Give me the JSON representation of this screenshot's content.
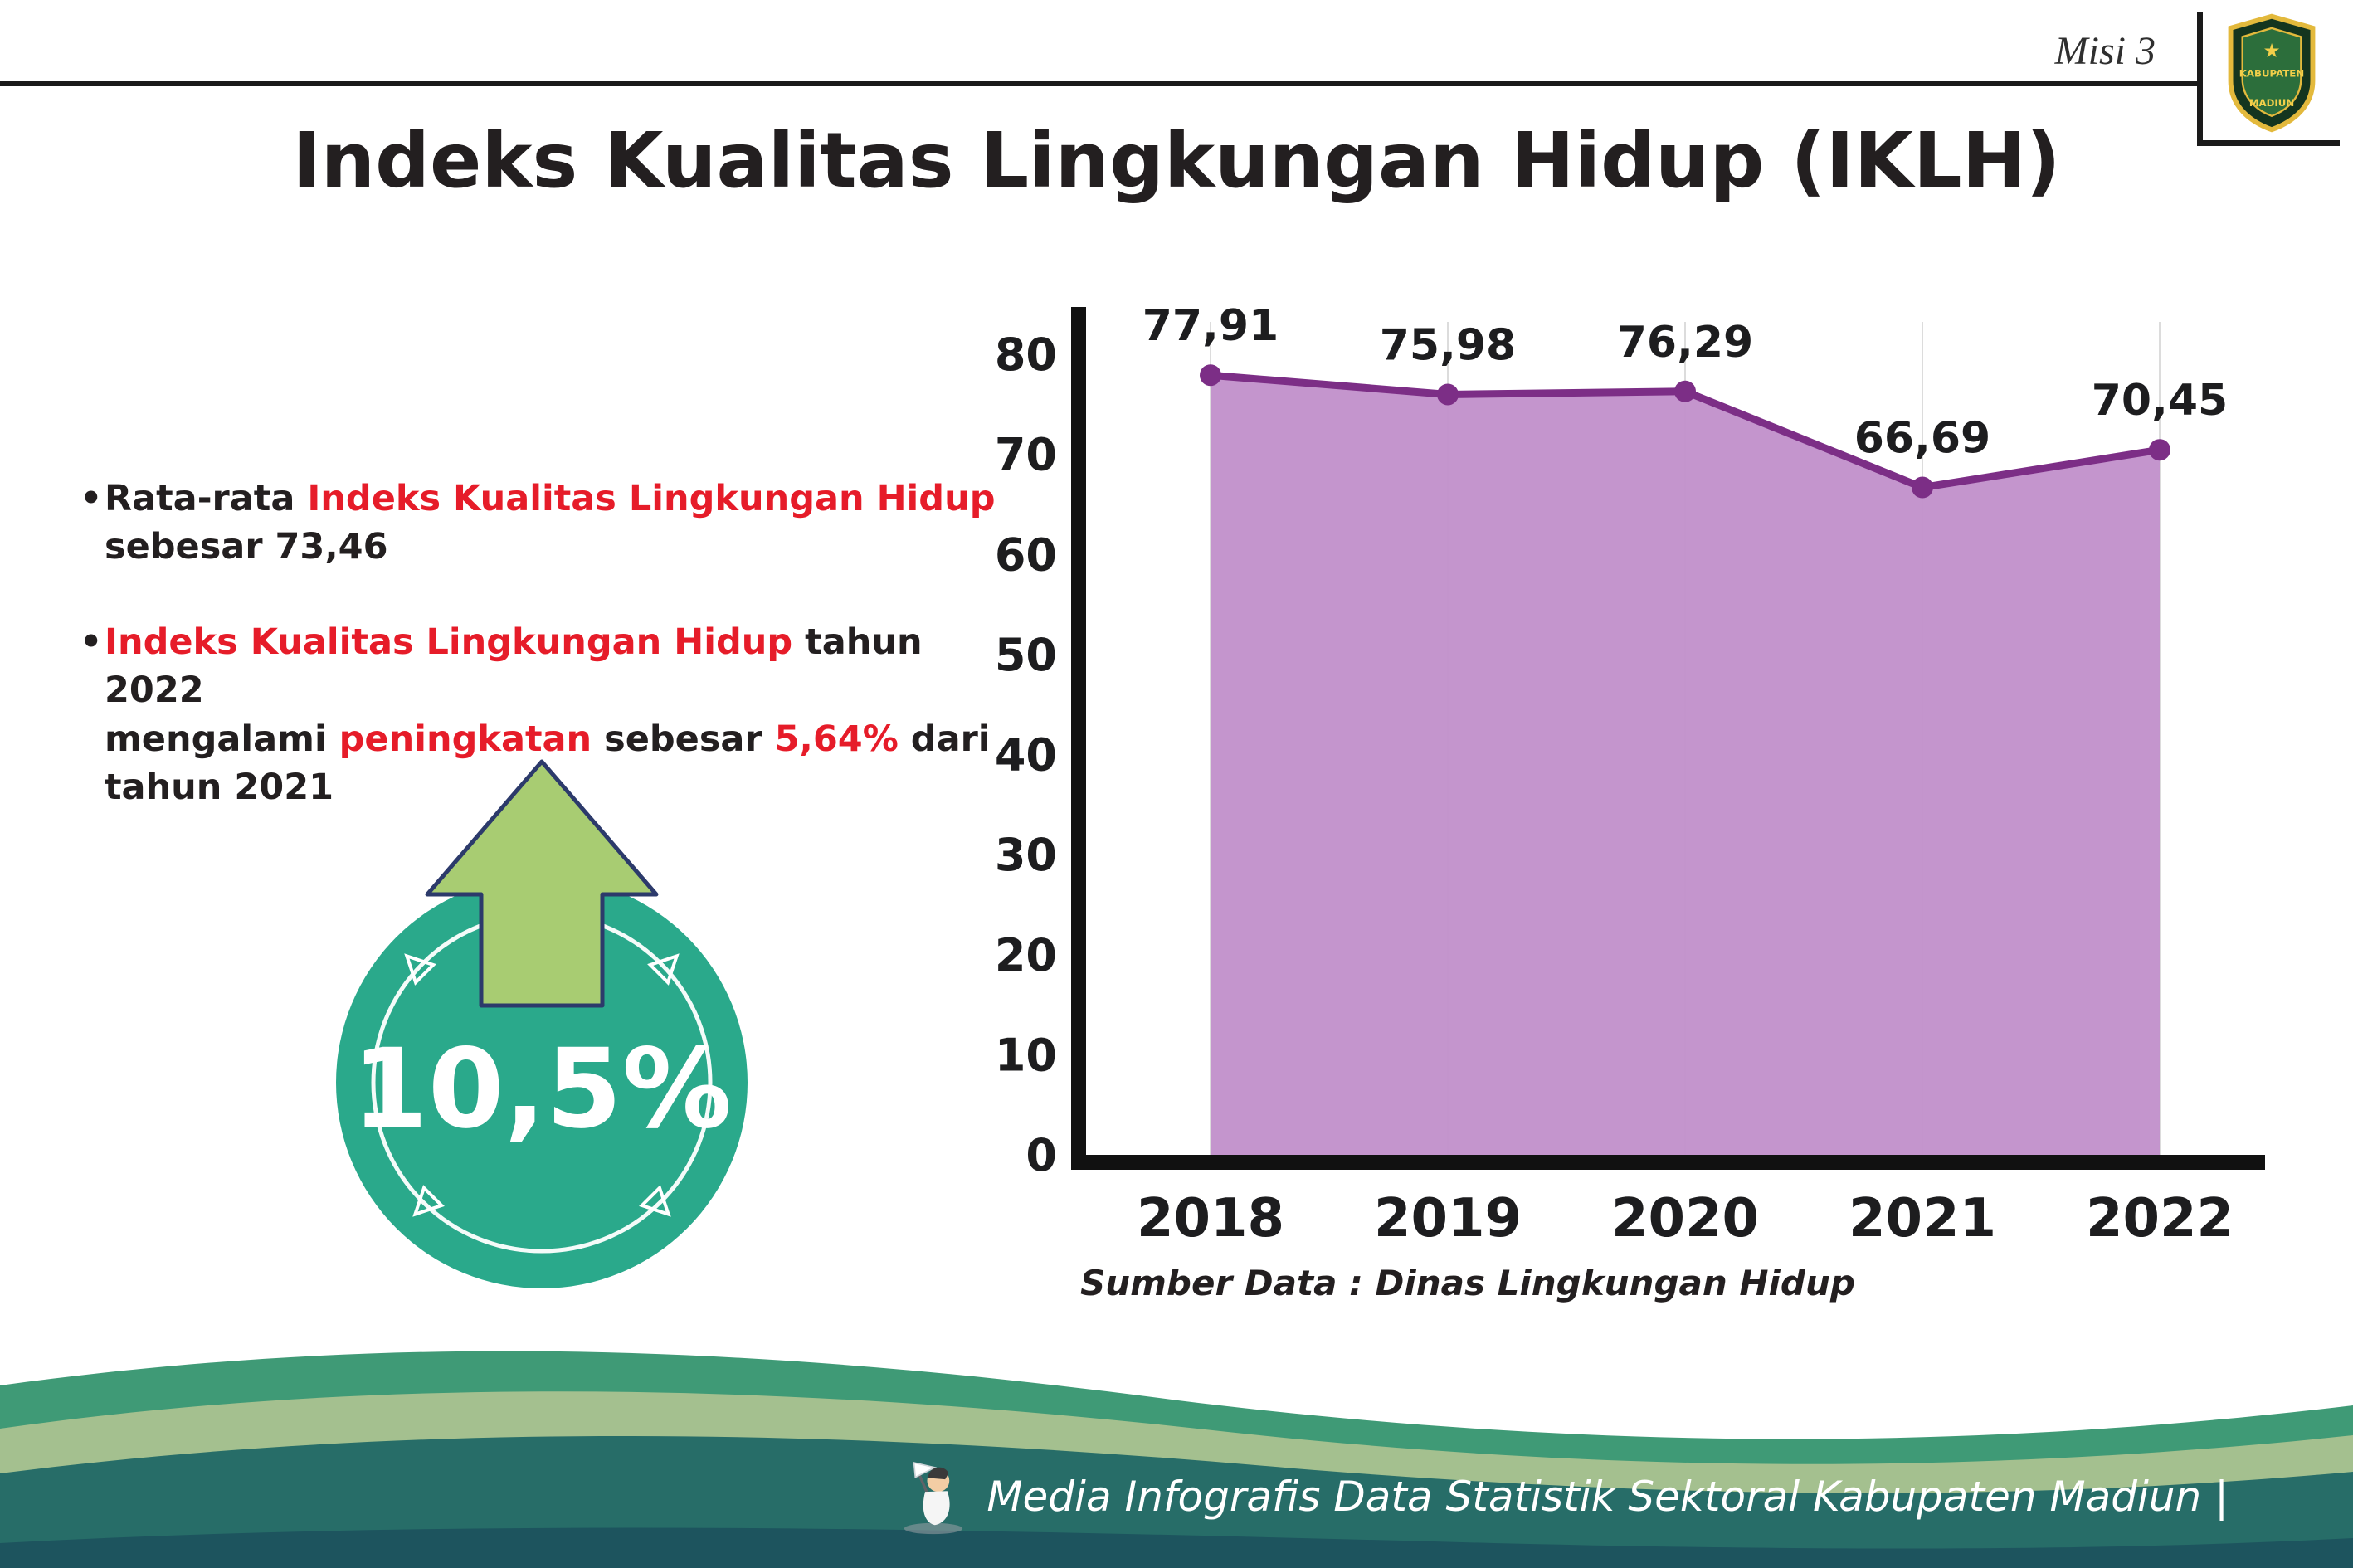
{
  "header": {
    "misi_label": "Misi 3",
    "title": "Indeks Kualitas Lingkungan Hidup (IKLH)",
    "logo_text_top": "KABUPATEN",
    "logo_text_bottom": "MADIUN"
  },
  "palette": {
    "accent_red": "#e61c29",
    "text_dark": "#231f20",
    "badge_teal": "#2aa98b",
    "arrow_green": "#a8cc72"
  },
  "bullets": [
    {
      "lines": [
        [
          {
            "text": "Rata-rata ",
            "color": "#231f20"
          },
          {
            "text": "Indeks Kualitas Lingkungan Hidup",
            "color": "#e61c29"
          }
        ],
        [
          {
            "text": "sebesar 73,46",
            "color": "#231f20"
          }
        ]
      ]
    },
    {
      "lines": [
        [
          {
            "text": "Indeks Kualitas Lingkungan Hidup",
            "color": "#e61c29"
          },
          {
            "text": " tahun 2022",
            "color": "#231f20"
          }
        ],
        [
          {
            "text": "mengalami ",
            "color": "#231f20"
          },
          {
            "text": "peningkatan",
            "color": "#e61c29"
          },
          {
            "text": " sebesar ",
            "color": "#231f20"
          },
          {
            "text": "5,64%",
            "color": "#e61c29"
          },
          {
            "text": " dari",
            "color": "#231f20"
          }
        ],
        [
          {
            "text": "tahun 2021",
            "color": "#231f20"
          }
        ]
      ]
    }
  ],
  "increase_badge": {
    "value": "10,5%"
  },
  "chart_data": {
    "type": "area",
    "categories": [
      "2018",
      "2019",
      "2020",
      "2021",
      "2022"
    ],
    "values": [
      77.91,
      75.98,
      76.29,
      66.69,
      70.45
    ],
    "point_labels": [
      "77,91",
      "75,98",
      "76,29",
      "66,69",
      "70,45"
    ],
    "ylim": [
      0,
      80
    ],
    "yticks": [
      0,
      10,
      20,
      30,
      40,
      50,
      60,
      70,
      80
    ],
    "grid": "vertical-light",
    "legend": "none",
    "line_color": "#7c2e86",
    "fill_color": "#c18fca",
    "source": "Sumber Data : Dinas Lingkungan Hidup"
  },
  "footer": {
    "caption": "Media Infografis Data Statistik Sektoral Kabupaten Madiun |"
  }
}
